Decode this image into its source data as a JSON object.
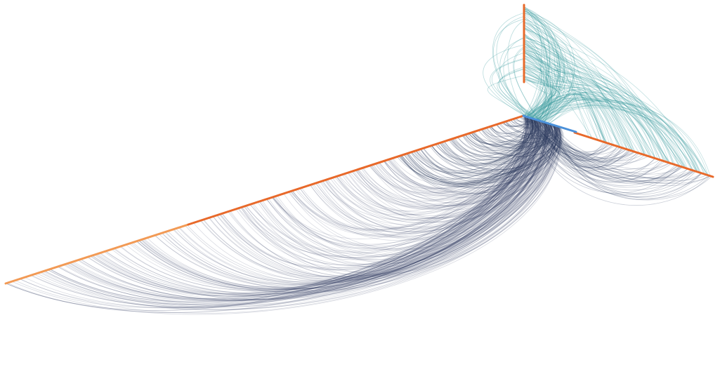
{
  "diagram": {
    "type": "hive-plot",
    "axes": [
      {
        "name": "axis-long-left"
      },
      {
        "name": "axis-top"
      },
      {
        "name": "axis-right"
      }
    ],
    "hub_segment": {
      "name": "hub-segment"
    },
    "link_groups": [
      {
        "name": "links-long-to-hub"
      },
      {
        "name": "links-hub-to-right"
      },
      {
        "name": "links-top-to-right"
      },
      {
        "name": "links-top-loop"
      }
    ],
    "colors": {
      "axis_primary": "#e8692a",
      "axis_light": "#f29a55",
      "hub": "#4a90d9",
      "link_dark": "#2d3a5e",
      "link_teal": "#3a9b9e",
      "background": "#ffffff"
    }
  }
}
